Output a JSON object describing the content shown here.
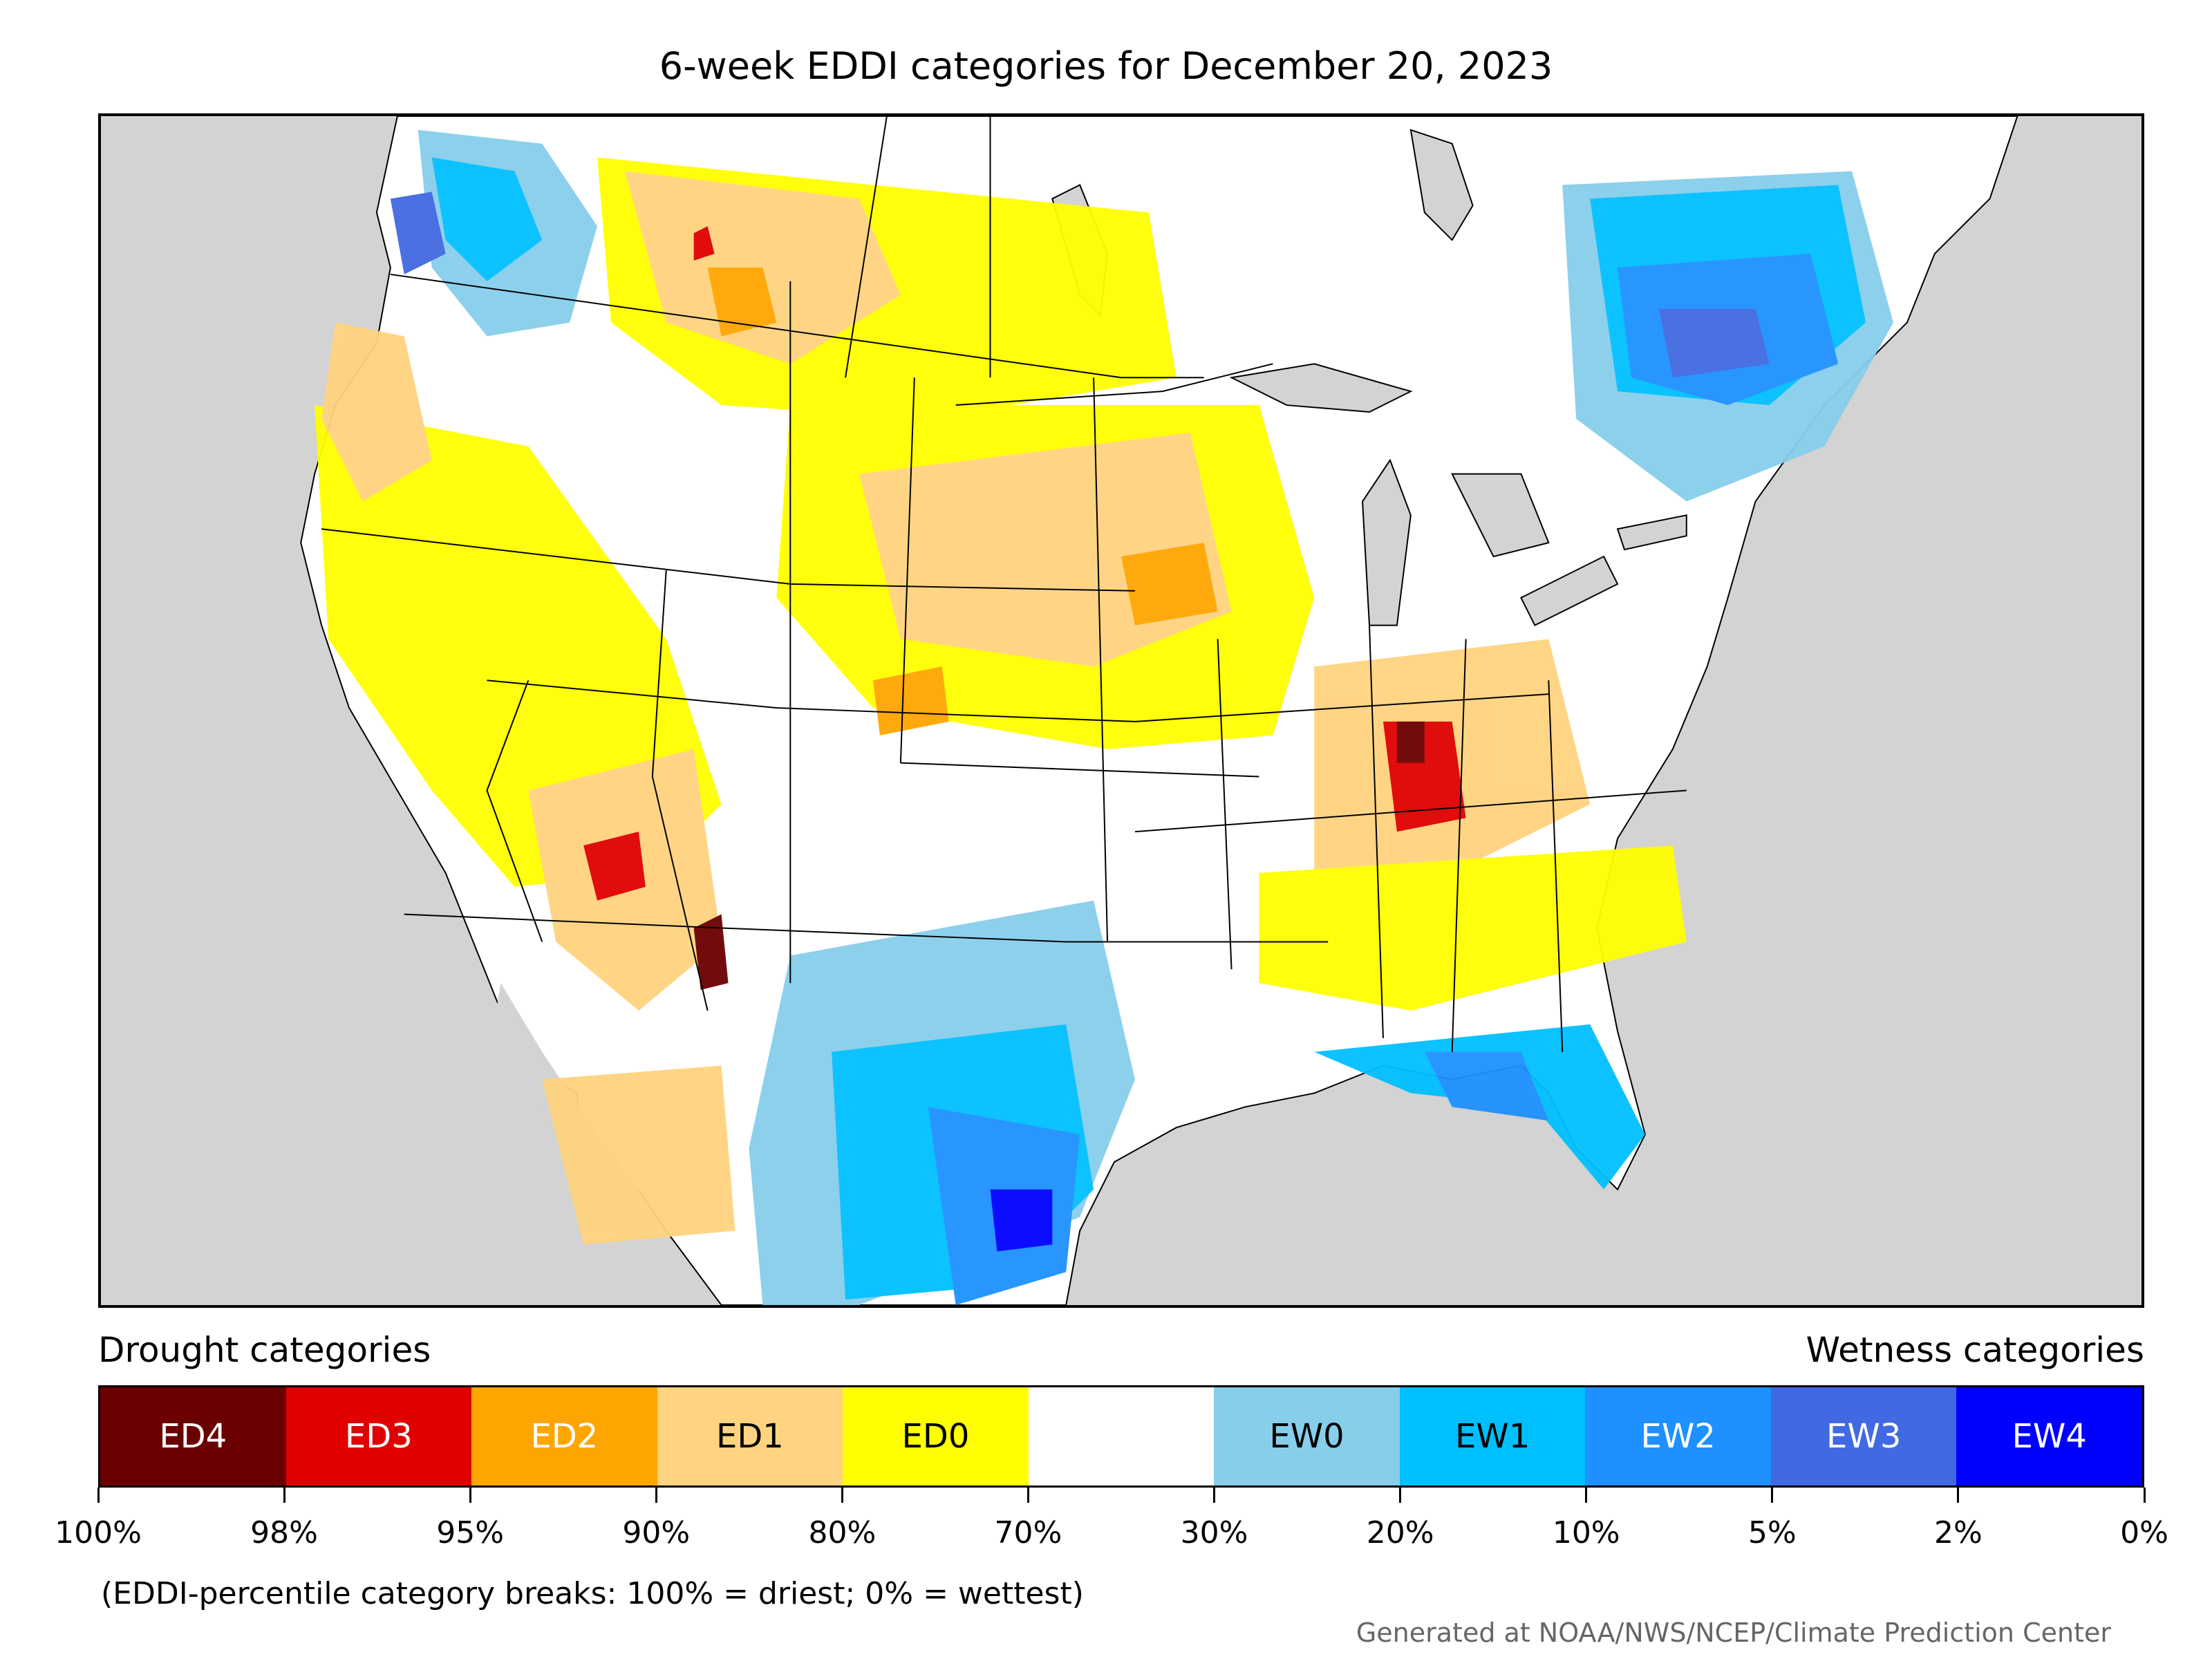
{
  "title": "6-week EDDI categories for December 20, 2023",
  "map": {
    "background_color": "#d3d3d3",
    "land_color": "#ffffff",
    "water_color": "#d3d3d3",
    "border_color": "#000000"
  },
  "legend": {
    "drought_heading": "Drought categories",
    "wetness_heading": "Wetness categories",
    "categories": [
      {
        "label": "ED4",
        "color": "#6b0000",
        "text": "light"
      },
      {
        "label": "ED3",
        "color": "#e00000",
        "text": "light"
      },
      {
        "label": "ED2",
        "color": "#ffa500",
        "text": "light"
      },
      {
        "label": "ED1",
        "color": "#ffd37f",
        "text": "dark"
      },
      {
        "label": "ED0",
        "color": "#ffff00",
        "text": "dark"
      },
      {
        "label": "",
        "color": "#ffffff",
        "text": "dark"
      },
      {
        "label": "EW0",
        "color": "#87ceeb",
        "text": "dark"
      },
      {
        "label": "EW1",
        "color": "#00bfff",
        "text": "dark"
      },
      {
        "label": "EW2",
        "color": "#1e90ff",
        "text": "light"
      },
      {
        "label": "EW3",
        "color": "#4169e1",
        "text": "light"
      },
      {
        "label": "EW4",
        "color": "#0000ff",
        "text": "light"
      }
    ],
    "tick_labels": [
      "100%",
      "98%",
      "95%",
      "90%",
      "80%",
      "70%",
      "30%",
      "20%",
      "10%",
      "5%",
      "2%",
      "0%"
    ]
  },
  "note": "(EDDI-percentile category breaks: 100% = driest; 0% = wettest)",
  "credit": "Generated at NOAA/NWS/NCEP/Climate Prediction Center"
}
